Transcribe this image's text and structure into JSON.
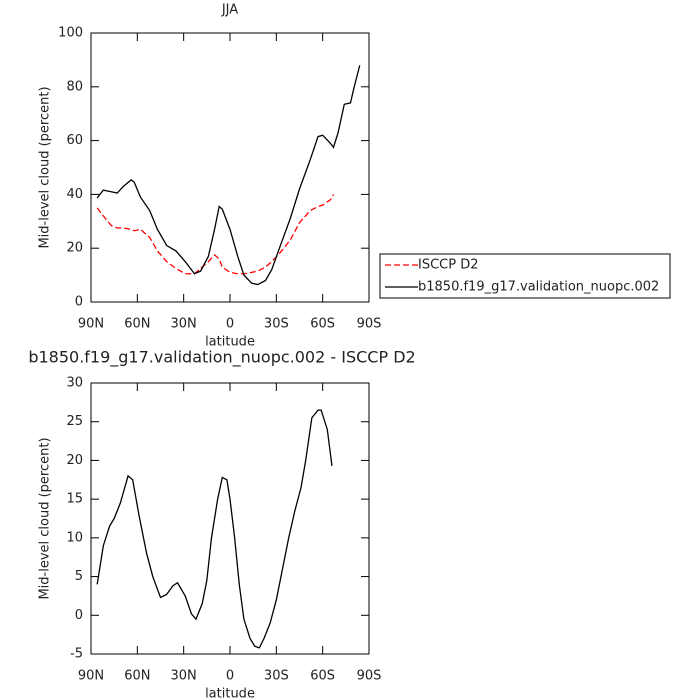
{
  "chart_data": [
    {
      "type": "line",
      "title": "JJA",
      "xlabel": "latitude",
      "ylabel": "Mid-level cloud (percent)",
      "x": [
        86,
        82,
        77,
        73,
        69,
        64,
        62,
        58,
        52,
        47,
        41,
        35,
        29,
        23,
        19,
        14,
        10,
        7,
        5,
        0,
        -5,
        -9,
        -14,
        -18,
        -23,
        -27,
        -32,
        -39,
        -45,
        -52,
        -57,
        -60,
        -65,
        -67,
        -70,
        -74,
        -78,
        -80,
        -84
      ],
      "series": [
        {
          "name": "ISCCP D2",
          "color": "#ff0000",
          "dashed": true,
          "values": [
            35,
            32,
            28.5,
            27.5,
            27.5,
            27,
            26.5,
            27,
            24,
            19,
            15,
            12.5,
            10.5,
            10.5,
            12.5,
            15,
            17.5,
            16,
            13,
            11,
            10.5,
            10.5,
            11,
            11.5,
            13,
            15,
            18,
            23,
            29.5,
            34,
            35.5,
            36,
            38,
            40,
            null,
            null,
            null,
            null,
            null
          ]
        },
        {
          "name": "b1850.f19_g17.validation_nuopc.002",
          "color": "#000000",
          "dashed": false,
          "values": [
            38.7,
            41.6,
            41,
            40.5,
            43,
            45.4,
            44.5,
            39,
            34,
            27,
            21,
            19,
            15,
            10.5,
            11.5,
            17,
            27,
            35.5,
            34.5,
            27,
            17,
            10,
            7,
            6.5,
            8,
            12,
            20,
            31,
            42,
            53,
            61.5,
            62,
            59,
            57.5,
            63,
            73.5,
            74,
            79,
            88
          ]
        }
      ],
      "xlim": [
        90,
        -90
      ],
      "xticks": [
        {
          "value": 90,
          "label": "90N"
        },
        {
          "value": 60,
          "label": "60N"
        },
        {
          "value": 30,
          "label": "30N"
        },
        0,
        {
          "value": -30,
          "label": "30S"
        },
        {
          "value": -60,
          "label": "60S"
        },
        {
          "value": -90,
          "label": "90S"
        }
      ],
      "ylim": [
        0,
        100
      ],
      "yticks": [
        0,
        20,
        40,
        60,
        80,
        100
      ],
      "legend": "right"
    },
    {
      "type": "line",
      "title": "b1850.f19_g17.validation_nuopc.002 - ISCCP D2",
      "xlabel": "latitude",
      "ylabel": "Mid-level cloud (percent)",
      "x": [
        86,
        82,
        78,
        75,
        71,
        66,
        63,
        59,
        54,
        50,
        45,
        41,
        37,
        34,
        29,
        25,
        22,
        18,
        15,
        12,
        8,
        5,
        2,
        0,
        -3,
        -6,
        -9,
        -13,
        -16,
        -19,
        -22,
        -26,
        -30,
        -34,
        -38,
        -42,
        -46,
        -49,
        -53,
        -57,
        -59,
        -63,
        -66
      ],
      "series": [
        {
          "color": "#000000",
          "dashed": false,
          "values": [
            4,
            9,
            11.5,
            12.5,
            14.5,
            18,
            17.5,
            13,
            8,
            5,
            2.3,
            2.7,
            3.8,
            4.2,
            2.5,
            0.2,
            -0.5,
            1.5,
            4.5,
            10,
            15,
            17.8,
            17.5,
            15,
            10,
            4,
            -0.5,
            -3,
            -4,
            -4.2,
            -3,
            -1,
            2,
            6,
            10,
            13.5,
            16.5,
            20,
            25.5,
            26.5,
            26.5,
            24,
            19.3
          ]
        }
      ],
      "xlim": [
        90,
        -90
      ],
      "xticks": [
        {
          "value": 90,
          "label": "90N"
        },
        {
          "value": 60,
          "label": "60N"
        },
        {
          "value": 30,
          "label": "30N"
        },
        0,
        {
          "value": -30,
          "label": "30S"
        },
        {
          "value": -60,
          "label": "60S"
        },
        {
          "value": -90,
          "label": "90S"
        }
      ],
      "ylim": [
        -5,
        30
      ],
      "yticks": [
        -5,
        0,
        5,
        10,
        15,
        20,
        25,
        30
      ]
    }
  ]
}
